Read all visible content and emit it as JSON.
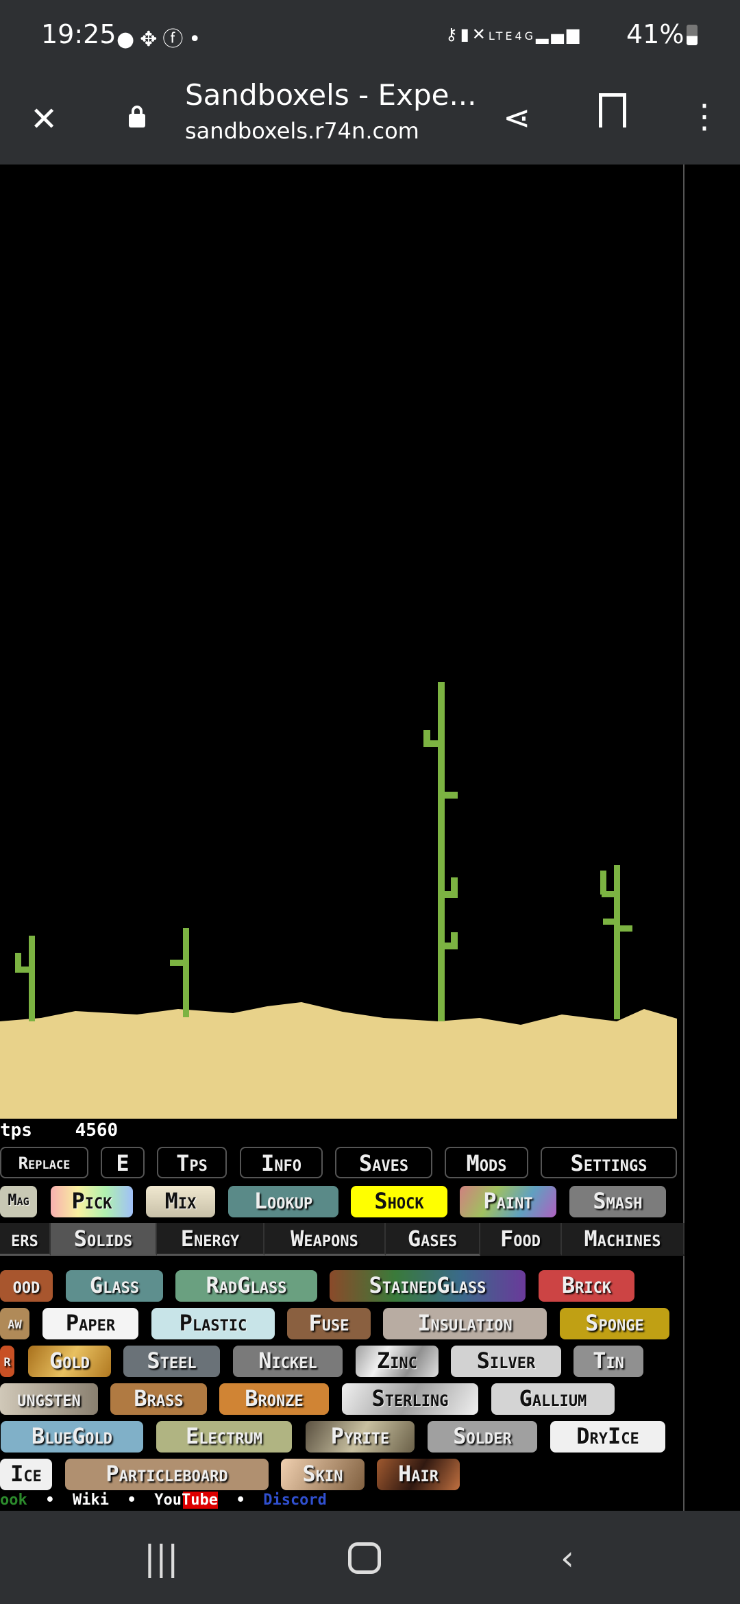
{
  "status_bar": {
    "time": "19:25",
    "left_icons": [
      "reddit-icon",
      "paw-icon",
      "facebook-icon",
      "dot-icon"
    ],
    "right_icons": [
      "vpn-key-icon",
      "battery-saver-icon",
      "mute-icon",
      "volte-icon",
      "4g-icon",
      "signal-icon"
    ],
    "battery": "41%"
  },
  "browser": {
    "title": "Sandboxels - Expe...",
    "url": "sandboxels.r74n.com"
  },
  "canvas": {
    "sand_color": "#e8d28a",
    "plant_color": "#7cb342"
  },
  "tps": {
    "label": "tps",
    "value": "4560"
  },
  "controls": [
    "Replace",
    "E",
    "Tps",
    "Info",
    "Saves",
    "Mods",
    "Settings"
  ],
  "tools": [
    "Mag",
    "Pick",
    "Mix",
    "Lookup",
    "Shock",
    "Paint",
    "Smash"
  ],
  "categories": {
    "items": [
      "ers",
      "Solids",
      "Energy",
      "Weapons",
      "Gases",
      "Food",
      "Machines"
    ],
    "active": "Solids"
  },
  "elements": [
    [
      "ood",
      "Glass",
      "RadGlass",
      "StainedGlass",
      "Brick"
    ],
    [
      "aw",
      "Paper",
      "Plastic",
      "Fuse",
      "Insulation",
      "Sponge"
    ],
    [
      "r",
      "Gold",
      "Steel",
      "Nickel",
      "Zinc",
      "Silver",
      "Tin"
    ],
    [
      "ungsten",
      "Brass",
      "Bronze",
      "Sterling",
      "Gallium"
    ],
    [
      "BlueGold",
      "Electrum",
      "Pyrite",
      "Solder",
      "DryIce"
    ],
    [
      "Ice",
      "Particleboard",
      "Skin",
      "Hair"
    ]
  ],
  "footer": {
    "links": [
      "ook",
      "•",
      "Wiki",
      "•",
      "YouTube",
      "•",
      "Discord"
    ]
  }
}
